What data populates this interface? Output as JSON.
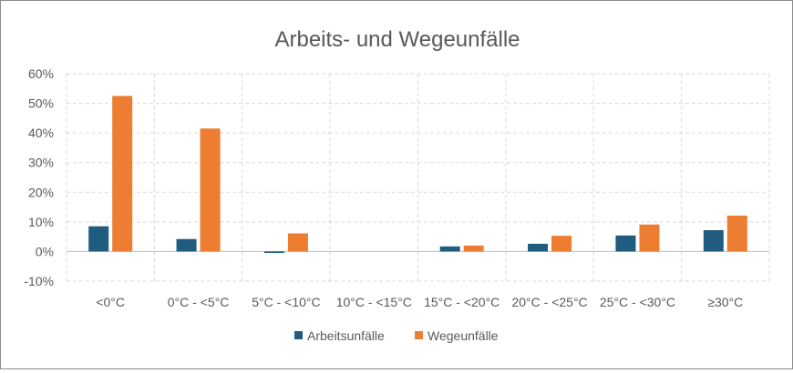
{
  "chart_data": {
    "type": "bar",
    "title": "Arbeits- und Wegeunfälle",
    "xlabel": "",
    "ylabel": "",
    "categories": [
      "<0°C",
      "0°C - <5°C",
      "5°C - <10°C",
      "10°C - <15°C",
      "15°C - <20°C",
      "20°C - <25°C",
      "25°C - <30°C",
      "≥30°C"
    ],
    "series": [
      {
        "name": "Arbeitsunfälle",
        "color": "#1f5c80",
        "values": [
          8.5,
          4.2,
          -0.5,
          0,
          1.7,
          2.6,
          5.4,
          7.2
        ]
      },
      {
        "name": "Wegeunfälle",
        "color": "#ed7d31",
        "values": [
          52.5,
          41.5,
          6.1,
          0,
          2.0,
          5.3,
          9.1,
          12.1
        ]
      }
    ],
    "ylim": [
      -10,
      60
    ],
    "yticks": [
      -10,
      0,
      10,
      20,
      30,
      40,
      50,
      60
    ],
    "ytick_labels": [
      "-10%",
      "0%",
      "10%",
      "20%",
      "30%",
      "40%",
      "50%",
      "60%"
    ],
    "grid": "dashed",
    "legend": "bottom"
  }
}
